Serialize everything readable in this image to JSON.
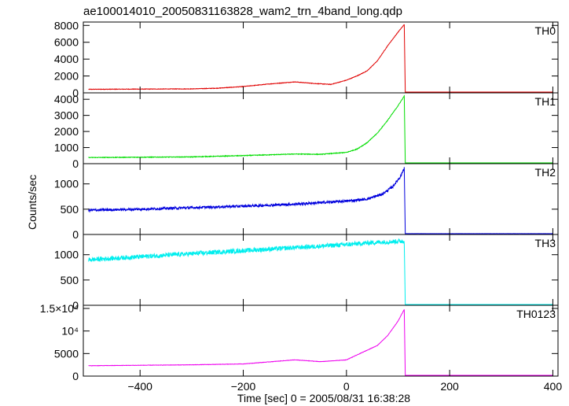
{
  "chart_data": {
    "type": "line",
    "title": "ae100014010_20050831163828_wam2_trn_4band_long.qdp",
    "xlabel": "Time [sec] 0 = 2005/08/31 16:38:28",
    "ylabel": "Counts/sec",
    "xlim": [
      -510,
      410
    ],
    "x_ticks": [
      -400,
      -200,
      0,
      200,
      400
    ],
    "x_tick_labels": [
      "−400",
      "−200",
      "0",
      "200",
      "400"
    ],
    "panels": [
      {
        "name": "TH0",
        "color": "#e00000",
        "ylim": [
          0,
          8400
        ],
        "y_ticks": [
          0,
          2000,
          4000,
          6000,
          8000
        ],
        "y_tick_labels": [
          "0",
          "2000",
          "4000",
          "6000",
          "8000"
        ],
        "noise": 30,
        "x": [
          -500,
          -300,
          -250,
          -200,
          -150,
          -100,
          -60,
          -30,
          0,
          20,
          40,
          60,
          80,
          100,
          112,
          114,
          400
        ],
        "y": [
          420,
          470,
          550,
          750,
          1050,
          1300,
          1100,
          1000,
          1500,
          2000,
          2600,
          3800,
          5600,
          7200,
          8100,
          40,
          40
        ]
      },
      {
        "name": "TH1",
        "color": "#00dd00",
        "ylim": [
          0,
          4400
        ],
        "y_ticks": [
          0,
          1000,
          2000,
          3000,
          4000
        ],
        "y_tick_labels": [
          "0",
          "1000",
          "2000",
          "3000",
          "4000"
        ],
        "noise": 20,
        "x": [
          -500,
          -300,
          -200,
          -100,
          -50,
          0,
          20,
          40,
          60,
          80,
          100,
          112,
          114,
          400
        ],
        "y": [
          380,
          420,
          500,
          600,
          580,
          700,
          900,
          1300,
          1900,
          2700,
          3600,
          4200,
          30,
          30
        ]
      },
      {
        "name": "TH2",
        "color": "#0000dd",
        "ylim": [
          0,
          1400
        ],
        "y_ticks": [
          0,
          500,
          1000
        ],
        "y_tick_labels": [
          "0",
          "500",
          "1000"
        ],
        "noise": 25,
        "x": [
          -500,
          -400,
          -300,
          -200,
          -100,
          0,
          40,
          70,
          90,
          105,
          112,
          114,
          400
        ],
        "y": [
          480,
          500,
          530,
          560,
          600,
          660,
          700,
          800,
          950,
          1150,
          1320,
          15,
          15
        ]
      },
      {
        "name": "TH3",
        "color": "#00eeee",
        "ylim": [
          0,
          1400
        ],
        "y_ticks": [
          0,
          500,
          1000
        ],
        "y_tick_labels": [
          "0",
          "500",
          "1000"
        ],
        "noise": 45,
        "x": [
          -500,
          -400,
          -300,
          -200,
          -100,
          0,
          50,
          112,
          114,
          400
        ],
        "y": [
          900,
          960,
          1020,
          1080,
          1140,
          1200,
          1240,
          1270,
          10,
          10
        ]
      },
      {
        "name": "TH0123",
        "color": "#ee00ee",
        "ylim": [
          0,
          15700
        ],
        "y_ticks": [
          0,
          5000,
          10000,
          15000
        ],
        "y_tick_labels": [
          "0",
          "5000",
          "10⁴",
          "1.5×10⁴"
        ],
        "noise": 40,
        "x": [
          -500,
          -300,
          -200,
          -100,
          -50,
          0,
          30,
          60,
          80,
          100,
          112,
          114,
          400
        ],
        "y": [
          2300,
          2500,
          2700,
          3600,
          3200,
          3600,
          5200,
          6800,
          9000,
          12200,
          14800,
          60,
          60
        ]
      }
    ]
  }
}
